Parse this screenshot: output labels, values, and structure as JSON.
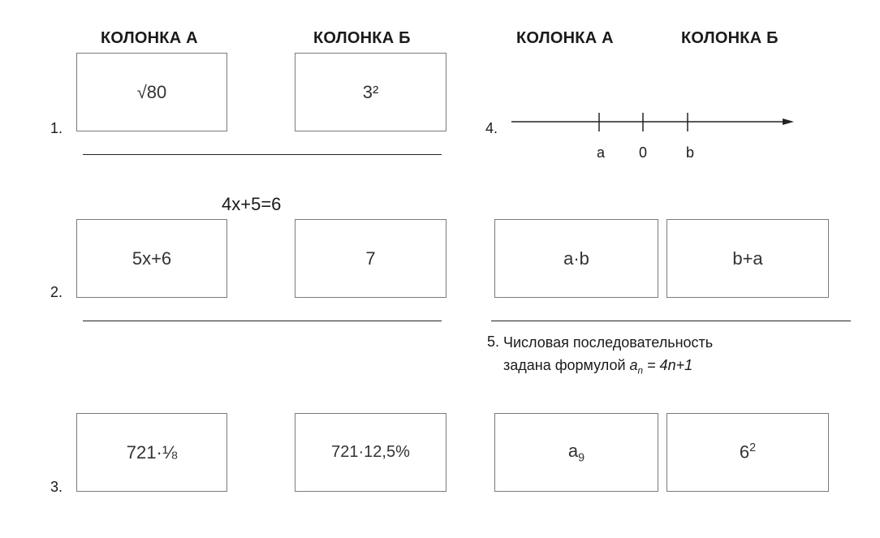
{
  "headers": {
    "left_a": "КОЛОНКА А",
    "left_b": "КОЛОНКА Б",
    "right_a": "КОЛОНКА А",
    "right_b": "КОЛОНКА Б"
  },
  "task1": {
    "number": "1.",
    "col_a": "√80",
    "col_b": "3²"
  },
  "task2": {
    "number": "2.",
    "condition": "4x+5=6",
    "col_a": "5x+6",
    "col_b": "7"
  },
  "task3": {
    "number": "3.",
    "col_a": "721·⅛",
    "col_b": "721·12,5%"
  },
  "task4": {
    "number": "4.",
    "labels": [
      "a",
      "0",
      "b"
    ],
    "col_a": "a·b",
    "col_b": "b+a"
  },
  "task5": {
    "number": "5.",
    "condition_line1": "Числовая последовательность",
    "condition_prefix": "задана формулой ",
    "formula_var": "a",
    "formula_sub": "n",
    "formula_rest": " = 4n+1",
    "col_a_var": "a",
    "col_a_sub": "9",
    "col_b_base": "6",
    "col_b_sup": "2"
  }
}
